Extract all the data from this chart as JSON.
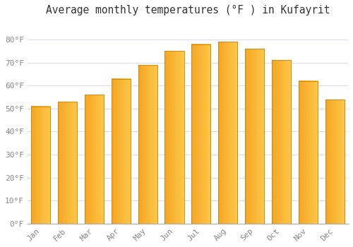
{
  "title": "Average monthly temperatures (°F ) in Kufayrit",
  "months": [
    "Jan",
    "Feb",
    "Mar",
    "Apr",
    "May",
    "Jun",
    "Jul",
    "Aug",
    "Sep",
    "Oct",
    "Nov",
    "Dec"
  ],
  "values": [
    51,
    53,
    56,
    63,
    69,
    75,
    78,
    79,
    76,
    71,
    62,
    54
  ],
  "bar_color_left": "#F5A623",
  "bar_color_right": "#FFC84A",
  "bar_edge_color": "#C8820A",
  "ylim": [
    0,
    88
  ],
  "yticks": [
    0,
    10,
    20,
    30,
    40,
    50,
    60,
    70,
    80
  ],
  "ytick_labels": [
    "0°F",
    "10°F",
    "20°F",
    "30°F",
    "40°F",
    "50°F",
    "60°F",
    "70°F",
    "80°F"
  ],
  "background_color": "#FFFFFF",
  "grid_color": "#DDDDEE",
  "title_fontsize": 10.5,
  "tick_fontsize": 8,
  "font_family": "monospace",
  "bar_width": 0.72
}
